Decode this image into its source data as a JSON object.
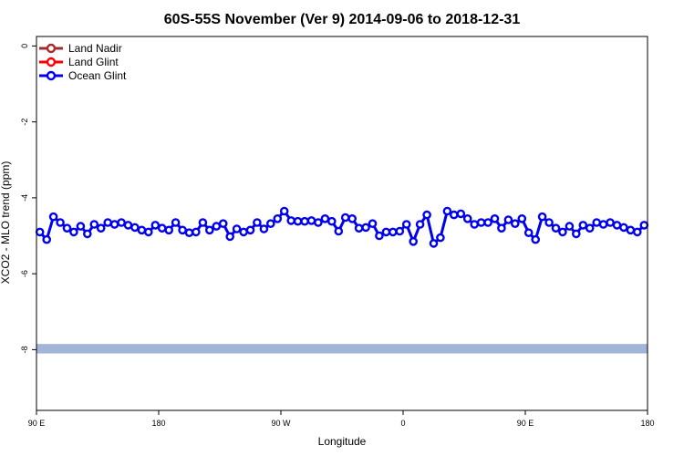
{
  "chart_data": {
    "type": "line",
    "title": "60S-55S November (Ver 9)   2014-09-06 to 2018-12-31",
    "xlabel": "Longitude",
    "ylabel": "XCO2 - MLO trend (ppm)",
    "x_ticks": [
      {
        "value": 90,
        "label": "90 E"
      },
      {
        "value": 180,
        "label": "180"
      },
      {
        "value": 270,
        "label": "90 W"
      },
      {
        "value": 360,
        "label": "0"
      },
      {
        "value": 450,
        "label": "90 E"
      },
      {
        "value": 540,
        "label": "180"
      }
    ],
    "xlim": [
      90,
      540
    ],
    "y_ticks": [
      0,
      -2,
      -4,
      -6,
      -8
    ],
    "ylim": [
      -9.6,
      0.25
    ],
    "legend": {
      "position": "top-left",
      "entries": [
        {
          "name": "Land Nadir",
          "color": "#a52a2a"
        },
        {
          "name": "Land Glint",
          "color": "#ff0000"
        },
        {
          "name": "Ocean Glint",
          "color": "#0000ee"
        }
      ]
    },
    "series": [
      {
        "name": "Ocean Glint",
        "color": "#0000ee",
        "x": [
          92.5,
          97.5,
          102.5,
          107.5,
          112.5,
          117.5,
          122.5,
          127.5,
          132.5,
          137.5,
          142.5,
          147.5,
          152.5,
          157.5,
          162.5,
          167.5,
          172.5,
          177.5,
          182.5,
          187.5,
          192.5,
          197.5,
          202.5,
          207.5,
          212.5,
          217.5,
          222.5,
          227.5,
          232.5,
          237.5,
          242.5,
          247.5,
          252.5,
          257.5,
          262.5,
          267.5,
          272.5,
          277.5,
          282.5,
          287.5,
          292.5,
          297.5,
          302.5,
          307.5,
          312.5,
          317.5,
          322.5,
          327.5,
          332.5,
          337.5,
          342.5,
          347.5,
          352.5,
          357.5,
          362.5,
          367.5,
          372.5,
          377.5,
          382.5,
          387.5,
          392.5,
          397.5,
          402.5,
          407.5,
          412.5,
          417.5,
          422.5,
          427.5,
          432.5,
          437.5,
          442.5,
          447.5,
          452.5,
          457.5,
          462.5,
          467.5,
          472.5,
          477.5,
          482.5,
          487.5,
          492.5,
          497.5,
          502.5,
          507.5,
          512.5,
          517.5,
          522.5,
          527.5,
          532.5,
          537.5
        ],
        "values": [
          -4.9,
          -5.1,
          -4.5,
          -4.65,
          -4.8,
          -4.9,
          -4.75,
          -4.95,
          -4.7,
          -4.8,
          -4.65,
          -4.7,
          -4.65,
          -4.72,
          -4.78,
          -4.85,
          -4.9,
          -4.72,
          -4.8,
          -4.85,
          -4.65,
          -4.85,
          -4.92,
          -4.9,
          -4.65,
          -4.85,
          -4.75,
          -4.68,
          -5.02,
          -4.82,
          -4.9,
          -4.85,
          -4.65,
          -4.82,
          -4.68,
          -4.55,
          -4.35,
          -4.6,
          -4.62,
          -4.62,
          -4.6,
          -4.65,
          -4.55,
          -4.62,
          -4.88,
          -4.52,
          -4.55,
          -4.8,
          -4.78,
          -4.68,
          -5.0,
          -4.9,
          -4.9,
          -4.88,
          -4.7,
          -5.15,
          -4.7,
          -4.45,
          -5.2,
          -5.05,
          -4.35,
          -4.45,
          -4.42,
          -4.55,
          -4.7,
          -4.65,
          -4.65,
          -4.55,
          -4.8,
          -4.58,
          -4.68,
          -4.55,
          -4.92,
          -5.1,
          -4.5,
          -4.65,
          -4.8,
          -4.9,
          -4.75,
          -4.95,
          -4.72,
          -4.8,
          -4.65,
          -4.7,
          -4.65,
          -4.72,
          -4.78,
          -4.85,
          -4.9,
          -4.72
        ]
      }
    ],
    "band": {
      "y_low": -8.1,
      "y_high": -7.85,
      "color": "#a2b5d8"
    }
  }
}
